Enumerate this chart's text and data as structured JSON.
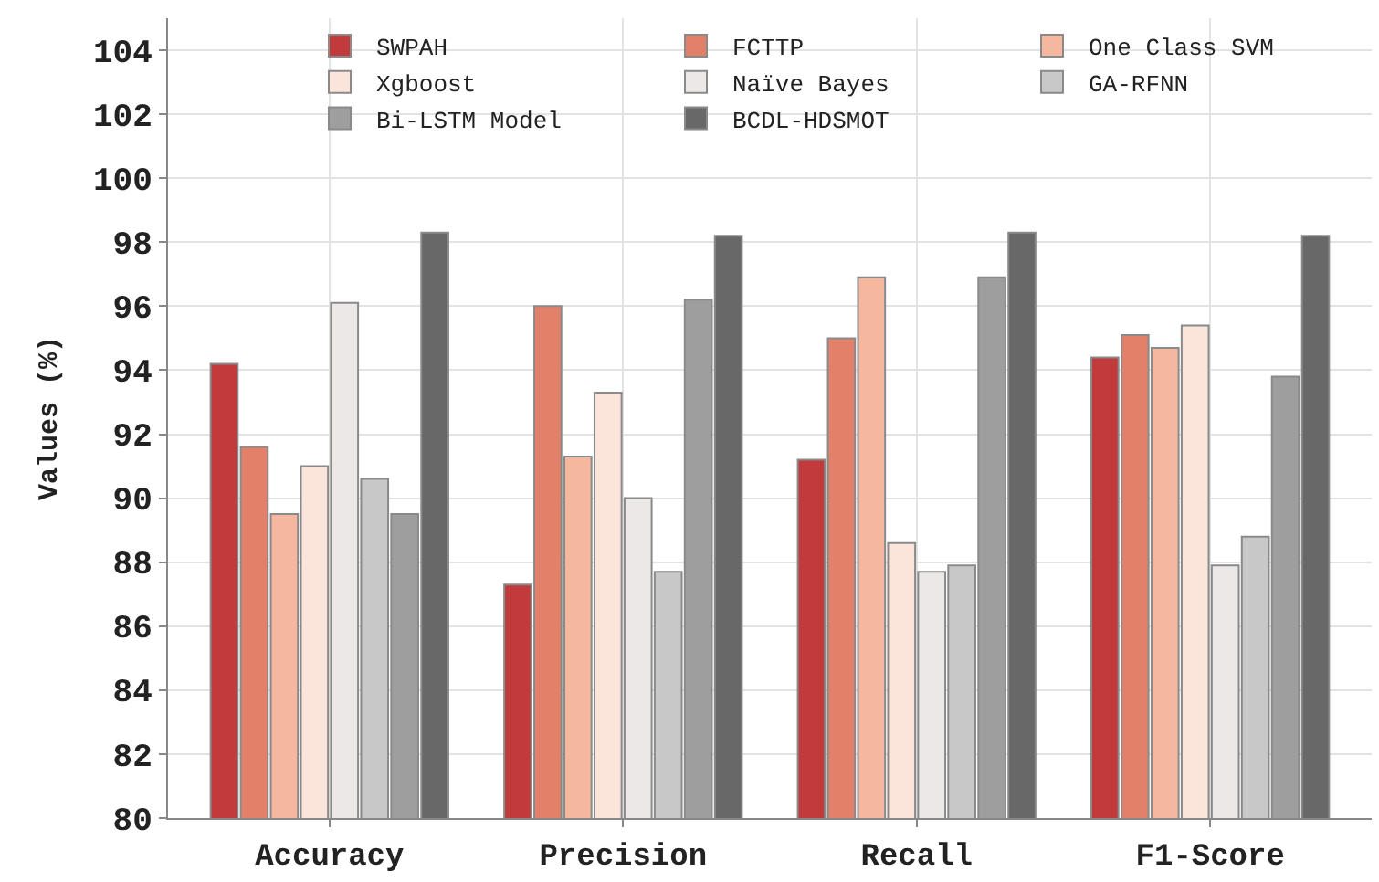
{
  "chart_data": {
    "type": "bar",
    "ylabel": "Values (%)",
    "categories": [
      "Accuracy",
      "Precision",
      "Recall",
      "F1-Score"
    ],
    "series": [
      {
        "name": "SWPAH",
        "color": "#c13a3c",
        "values": [
          94.2,
          87.3,
          91.2,
          94.4
        ]
      },
      {
        "name": "FCTTP",
        "color": "#e3806a",
        "values": [
          91.6,
          96.0,
          95.0,
          95.1
        ]
      },
      {
        "name": "One Class SVM",
        "color": "#f5b79d",
        "values": [
          89.5,
          91.3,
          96.9,
          94.7
        ]
      },
      {
        "name": "Xgboost",
        "color": "#fbe4da",
        "values": [
          91.0,
          93.3,
          88.6,
          95.4
        ]
      },
      {
        "name": "Naïve Bayes",
        "color": "#ece8e7",
        "values": [
          96.1,
          90.0,
          87.7,
          87.9
        ]
      },
      {
        "name": "GA-RFNN",
        "color": "#c8c8c8",
        "values": [
          90.6,
          87.7,
          87.9,
          88.8
        ]
      },
      {
        "name": "Bi-LSTM Model",
        "color": "#9e9e9e",
        "values": [
          89.5,
          96.2,
          96.9,
          93.8
        ]
      },
      {
        "name": "BCDL-HDSMOT",
        "color": "#686868",
        "values": [
          98.3,
          98.2,
          98.3,
          98.2
        ]
      }
    ],
    "ylim": [
      80,
      105
    ],
    "yticks": [
      80,
      82,
      84,
      86,
      88,
      90,
      92,
      94,
      96,
      98,
      100,
      102,
      104
    ],
    "grid": true,
    "legend": "top right"
  }
}
